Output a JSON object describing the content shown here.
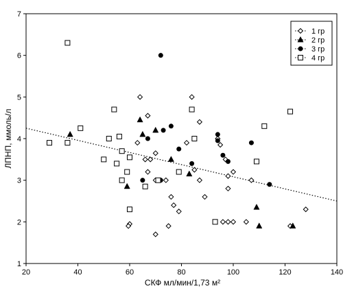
{
  "chart_data": {
    "type": "scatter",
    "xlabel": "СКФ мл/мин/1,73 м²",
    "ylabel": "ЛПНП, ммоль/л",
    "xlim": [
      20,
      140
    ],
    "ylim": [
      1,
      7
    ],
    "x_ticks": [
      20,
      40,
      60,
      80,
      100,
      120,
      140
    ],
    "y_ticks": [
      1,
      2,
      3,
      4,
      5,
      6,
      7
    ],
    "grid": false,
    "legend_position": "top-right",
    "trendline": {
      "style": "dotted",
      "x": [
        20,
        140
      ],
      "y": [
        4.25,
        2.5
      ]
    },
    "series": [
      {
        "name": "1 гр",
        "marker": "open-diamond",
        "points": [
          [
            64,
            5.0
          ],
          [
            67,
            4.55
          ],
          [
            63,
            3.9
          ],
          [
            66,
            3.5
          ],
          [
            67,
            3.2
          ],
          [
            70,
            3.65
          ],
          [
            70,
            3.0
          ],
          [
            68,
            3.5
          ],
          [
            60,
            1.95
          ],
          [
            59.5,
            1.9
          ],
          [
            70,
            1.7
          ],
          [
            75,
            1.9
          ],
          [
            74,
            3.0
          ],
          [
            76,
            2.6
          ],
          [
            77,
            2.4
          ],
          [
            79,
            2.25
          ],
          [
            82,
            3.9
          ],
          [
            84,
            5.0
          ],
          [
            87,
            4.4
          ],
          [
            87,
            3.0
          ],
          [
            89,
            2.6
          ],
          [
            85,
            3.25
          ],
          [
            95,
            3.85
          ],
          [
            94,
            4.0
          ],
          [
            97,
            3.5
          ],
          [
            98,
            3.1
          ],
          [
            98,
            2.8
          ],
          [
            98,
            2.0
          ],
          [
            100,
            3.2
          ],
          [
            100,
            2.0
          ],
          [
            96,
            2.0
          ],
          [
            105,
            2.0
          ],
          [
            107,
            3.0
          ],
          [
            122,
            1.9
          ],
          [
            128,
            2.3
          ]
        ]
      },
      {
        "name": "2 гр",
        "marker": "filled-triangle",
        "points": [
          [
            37,
            4.1
          ],
          [
            59,
            2.85
          ],
          [
            64,
            4.45
          ],
          [
            65,
            4.1
          ],
          [
            70,
            4.2
          ],
          [
            76,
            3.5
          ],
          [
            83,
            3.15
          ],
          [
            109,
            2.35
          ],
          [
            110,
            1.9
          ],
          [
            123,
            1.9
          ]
        ]
      },
      {
        "name": "3 гр",
        "marker": "filled-circle",
        "points": [
          [
            72,
            6.0
          ],
          [
            67,
            4.0
          ],
          [
            73,
            4.2
          ],
          [
            76,
            4.3
          ],
          [
            79,
            3.75
          ],
          [
            84,
            3.4
          ],
          [
            65,
            3.0
          ],
          [
            72,
            3.0
          ],
          [
            94,
            4.1
          ],
          [
            94,
            3.95
          ],
          [
            96,
            3.6
          ],
          [
            98,
            3.45
          ],
          [
            107,
            3.9
          ],
          [
            114,
            2.9
          ]
        ]
      },
      {
        "name": "4 гр",
        "marker": "open-square",
        "points": [
          [
            36,
            6.3
          ],
          [
            29,
            3.9
          ],
          [
            36,
            3.9
          ],
          [
            41,
            4.25
          ],
          [
            50,
            3.5
          ],
          [
            52,
            4.0
          ],
          [
            54,
            4.7
          ],
          [
            55,
            3.4
          ],
          [
            56,
            4.05
          ],
          [
            57,
            3.7
          ],
          [
            57,
            3.0
          ],
          [
            59,
            3.2
          ],
          [
            60,
            3.55
          ],
          [
            60,
            2.3
          ],
          [
            66,
            2.85
          ],
          [
            71,
            3.0
          ],
          [
            79,
            3.2
          ],
          [
            84,
            4.7
          ],
          [
            85,
            4.0
          ],
          [
            93,
            2.0
          ],
          [
            109,
            3.45
          ],
          [
            112,
            4.3
          ],
          [
            122,
            4.65
          ]
        ]
      }
    ]
  }
}
